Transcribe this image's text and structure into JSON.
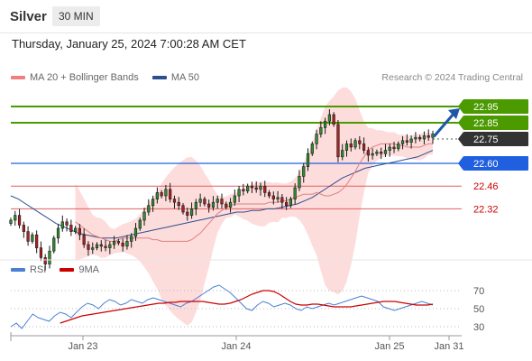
{
  "header": {
    "instrument": "Silver",
    "timeframe": "30 MIN"
  },
  "datetime": "Thursday, January 25, 2024 7:00:28 AM CET",
  "legend_top": [
    {
      "label": "MA 20 + Bollinger Bands",
      "color": "#f08080"
    },
    {
      "label": "MA 50",
      "color": "#2e4f8f"
    }
  ],
  "credit": "Research © 2024 Trading Central",
  "legend_bottom": [
    {
      "label": "RSI",
      "color": "#4a7fd4"
    },
    {
      "label": "9MA",
      "color": "#cc0000"
    }
  ],
  "colors": {
    "resistance": "#4a9a00",
    "current": "#333333",
    "pivot": "#2060e0",
    "support": "#e06060",
    "support_text": "#cc0000",
    "bb_fill": "#fdd8d8",
    "candle": "#1a1a1a",
    "up": "#2f8f2f",
    "down": "#b02020",
    "ma50": "#2e4f8f",
    "ma20": "#e08080",
    "rsi": "#4a7fd4",
    "rsi_ma": "#cc0000",
    "arrow": "#1f56a8"
  },
  "chart_data": [
    {
      "type": "candlestick",
      "title": "Silver",
      "timeframe": "30 MIN",
      "y_range": [
        22.05,
        23.05
      ],
      "x_ticks": [
        "Jan 23",
        "Jan 24",
        "Jan 25",
        "Jan 31"
      ],
      "levels": [
        {
          "value": 22.95,
          "label": "22.95",
          "kind": "resistance"
        },
        {
          "value": 22.85,
          "label": "22.85",
          "kind": "resistance"
        },
        {
          "value": 22.75,
          "label": "22.75",
          "kind": "current"
        },
        {
          "value": 22.6,
          "label": "22.60",
          "kind": "pivot"
        },
        {
          "value": 22.46,
          "label": "22.46",
          "kind": "support"
        },
        {
          "value": 22.32,
          "label": "22.32",
          "kind": "support"
        }
      ],
      "close": [
        22.25,
        22.28,
        22.22,
        22.18,
        22.12,
        22.16,
        22.08,
        22.02,
        21.98,
        22.06,
        22.14,
        22.2,
        22.24,
        22.22,
        22.18,
        22.2,
        22.16,
        22.1,
        22.07,
        22.08,
        22.1,
        22.09,
        22.08,
        22.1,
        22.12,
        22.11,
        22.09,
        22.12,
        22.15,
        22.2,
        22.25,
        22.3,
        22.34,
        22.38,
        22.42,
        22.4,
        22.44,
        22.38,
        22.36,
        22.34,
        22.3,
        22.28,
        22.32,
        22.36,
        22.38,
        22.35,
        22.33,
        22.36,
        22.38,
        22.35,
        22.33,
        22.36,
        22.4,
        22.44,
        22.43,
        22.46,
        22.45,
        22.44,
        22.46,
        22.42,
        22.4,
        22.38,
        22.39,
        22.36,
        22.34,
        22.38,
        22.45,
        22.52,
        22.58,
        22.66,
        22.72,
        22.78,
        22.82,
        22.86,
        22.9,
        22.84,
        22.64,
        22.68,
        22.72,
        22.7,
        22.74,
        22.72,
        22.68,
        22.65,
        22.66,
        22.67,
        22.66,
        22.68,
        22.7,
        22.69,
        22.72,
        22.74,
        22.73,
        22.75,
        22.76,
        22.75,
        22.77,
        22.76,
        22.78
      ],
      "ma20": [
        22.24,
        22.22,
        22.2,
        22.18,
        22.16,
        22.15,
        22.14,
        22.13,
        22.12,
        22.12,
        22.13,
        22.14,
        22.14,
        22.14,
        22.14,
        22.14,
        22.14,
        22.14,
        22.13,
        22.13,
        22.12,
        22.12,
        22.12,
        22.12,
        22.12,
        22.12,
        22.12,
        22.13,
        22.15,
        22.17,
        22.2,
        22.23,
        22.26,
        22.29,
        22.31,
        22.33,
        22.34,
        22.35,
        22.35,
        22.35,
        22.35,
        22.35,
        22.35,
        22.35,
        22.35,
        22.36,
        22.36,
        22.36,
        22.37,
        22.37,
        22.38,
        22.39,
        22.4,
        22.41,
        22.41,
        22.41,
        22.42,
        22.41,
        22.4,
        22.4,
        22.41,
        22.42,
        22.44,
        22.47,
        22.51,
        22.55,
        22.6,
        22.64,
        22.68,
        22.7,
        22.71,
        22.72,
        22.72,
        22.72,
        22.72,
        22.71,
        22.71,
        22.7,
        22.7,
        22.7,
        22.7,
        22.71,
        22.72,
        22.72
      ],
      "ma50": [
        22.4,
        22.38,
        22.35,
        22.32,
        22.29,
        22.26,
        22.23,
        22.21,
        22.19,
        22.17,
        22.16,
        22.15,
        22.14,
        22.14,
        22.14,
        22.15,
        22.16,
        22.17,
        22.18,
        22.19,
        22.2,
        22.21,
        22.22,
        22.23,
        22.24,
        22.25,
        22.26,
        22.27,
        22.28,
        22.29,
        22.3,
        22.3,
        22.31,
        22.31,
        22.32,
        22.32,
        22.33,
        22.34,
        22.35,
        22.37,
        22.39,
        22.42,
        22.45,
        22.48,
        22.51,
        22.53,
        22.55,
        22.57,
        22.58,
        22.59,
        22.6,
        22.61,
        22.62,
        22.63,
        22.64,
        22.66,
        22.68
      ],
      "bb_upper_min": 0.06
    },
    {
      "type": "line",
      "title": "RSI",
      "y_range": [
        20,
        80
      ],
      "y_ticks": [
        70,
        50,
        30
      ],
      "series": [
        {
          "name": "RSI",
          "values": [
            30,
            34,
            28,
            36,
            44,
            40,
            38,
            36,
            42,
            46,
            44,
            40,
            46,
            52,
            56,
            54,
            50,
            56,
            60,
            58,
            54,
            56,
            60,
            58,
            56,
            60,
            62,
            60,
            58,
            56,
            54,
            52,
            56,
            58,
            62,
            66,
            70,
            74,
            76,
            72,
            68,
            62,
            56,
            50,
            48,
            54,
            58,
            56,
            52,
            54,
            56,
            54,
            50,
            48,
            52,
            50,
            52,
            54,
            56,
            54,
            56,
            58,
            60,
            62,
            64,
            62,
            60,
            58,
            52,
            50,
            48,
            50,
            52,
            54,
            56,
            58,
            56,
            54
          ]
        },
        {
          "name": "9MA",
          "values": [
            34,
            36,
            38,
            40,
            42,
            43,
            44,
            45,
            46,
            47,
            48,
            49,
            50,
            51,
            52,
            53,
            54,
            55,
            56,
            56,
            57,
            57,
            58,
            58,
            58,
            58,
            58,
            57,
            56,
            55,
            55,
            56,
            58,
            60,
            63,
            66,
            68,
            70,
            70,
            69,
            66,
            62,
            58,
            55,
            54,
            54,
            55,
            55,
            54,
            53,
            52,
            52,
            52,
            52,
            53,
            54,
            55,
            56,
            57,
            58,
            58,
            58,
            57,
            56,
            55,
            54,
            54,
            54,
            55
          ]
        }
      ]
    }
  ]
}
